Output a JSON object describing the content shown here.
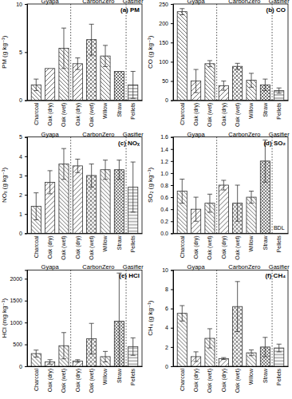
{
  "chart_data": [
    {
      "type": "bar",
      "title": "(a) PM",
      "y_label": "PM (g kg⁻¹)",
      "categories": [
        "Charcoal",
        "Oak (dry)",
        "Oak (wet)",
        "Oak (dry)",
        "Oak (wet)",
        "Willow",
        "Straw",
        "Pellets"
      ],
      "group": [
        "Gyapa",
        "Gyapa",
        "Gyapa",
        "CarbonZero",
        "CarbonZero",
        "CarbonZero",
        "CarbonZero",
        "Gasifier"
      ],
      "values": [
        1.6,
        3.3,
        5.4,
        3.8,
        6.3,
        4.6,
        3.0,
        1.6
      ],
      "errors": [
        0.6,
        null,
        2.1,
        0.6,
        1.6,
        1.1,
        null,
        1.4
      ],
      "ylim": [
        0,
        10
      ],
      "yticks": [
        0,
        5,
        10
      ],
      "color": "#333333"
    },
    {
      "type": "bar",
      "title": "(b) CO",
      "y_label": "CO (g kg⁻¹)",
      "categories": [
        "Charcoal",
        "Oak (dry)",
        "Oak (wet)",
        "Oak (dry)",
        "Oak (wet)",
        "Willow",
        "Straw",
        "Pellets"
      ],
      "group": [
        "Gyapa",
        "Gyapa",
        "Gyapa",
        "CarbonZero",
        "CarbonZero",
        "CarbonZero",
        "CarbonZero",
        "Gasifier"
      ],
      "values": [
        230,
        50,
        95,
        38,
        88,
        52,
        40,
        25
      ],
      "errors": [
        8,
        30,
        8,
        12,
        8,
        18,
        15,
        7
      ],
      "ylim": [
        0,
        250
      ],
      "yticks": [
        0,
        50,
        100,
        150,
        200,
        250
      ],
      "color": "#333333"
    },
    {
      "type": "bar",
      "title": "(c) NOₓ",
      "y_label": "NOₓ (g kg⁻¹)",
      "categories": [
        "Charcoal",
        "Oak (dry)",
        "Oak (wet)",
        "Oak (dry)",
        "Oak (wet)",
        "Willow",
        "Straw",
        "Pellets"
      ],
      "group": [
        "Gyapa",
        "Gyapa",
        "Gyapa",
        "CarbonZero",
        "CarbonZero",
        "CarbonZero",
        "CarbonZero",
        "Gasifier"
      ],
      "values": [
        1.4,
        2.65,
        3.6,
        3.5,
        3.0,
        3.3,
        3.3,
        2.4
      ],
      "errors": [
        0.7,
        0.6,
        0.8,
        0.35,
        0.6,
        0.5,
        0.5,
        1.3
      ],
      "ylim": [
        0,
        5
      ],
      "yticks": [
        0,
        1,
        2,
        3,
        4,
        5
      ],
      "color": "#333333"
    },
    {
      "type": "bar",
      "title": "(d) SO₂",
      "y_label": "SO₂ (g kg⁻¹)",
      "categories": [
        "Charcoal",
        "Oak (dry)",
        "Oak (wet)",
        "Oak (dry)",
        "Oak (wet)",
        "Willow",
        "Straw",
        "Pellets"
      ],
      "group": [
        "Gyapa",
        "Gyapa",
        "Gyapa",
        "CarbonZero",
        "CarbonZero",
        "CarbonZero",
        "CarbonZero",
        "Gasifier"
      ],
      "values": [
        0.7,
        0.4,
        0.5,
        0.8,
        0.5,
        0.6,
        1.2,
        null
      ],
      "errors": [
        0.2,
        0.2,
        0.15,
        0.08,
        0.3,
        0.1,
        0.35,
        null
      ],
      "annotations": [
        {
          "text": "BDL",
          "x": "Pellets"
        }
      ],
      "ylim": [
        0,
        1.6
      ],
      "yticks": [
        {
          "value": 0,
          "label": "0.0"
        },
        {
          "value": 0.2,
          "label": "0.2"
        },
        {
          "value": 0.4,
          "label": "0.4"
        },
        {
          "value": 0.6,
          "label": "0.6"
        },
        {
          "value": 0.8,
          "label": "0.8"
        },
        {
          "value": 1,
          "label": "1.0"
        },
        {
          "value": 1.2,
          "label": "1.2"
        },
        {
          "value": 1.4,
          "label": "1.4"
        },
        {
          "value": 1.6,
          "label": "1.6"
        }
      ],
      "color": "#333333"
    },
    {
      "type": "bar",
      "title": "(e) HCl",
      "y_label": "HCl (mg kg⁻¹)",
      "categories": [
        "Charcoal",
        "Oak (dry)",
        "Oak (wet)",
        "Oak (dry)",
        "Oak (wet)",
        "Willow",
        "Straw",
        "Pellets"
      ],
      "group": [
        "Gyapa",
        "Gyapa",
        "Gyapa",
        "CarbonZero",
        "CarbonZero",
        "CarbonZero",
        "CarbonZero",
        "Gasifier"
      ],
      "values": [
        290,
        100,
        470,
        120,
        630,
        220,
        1030,
        450
      ],
      "errors": [
        80,
        50,
        300,
        30,
        350,
        120,
        1100,
        200
      ],
      "ylim": [
        0,
        2200
      ],
      "yticks": [
        0,
        500,
        1000,
        1500,
        2000
      ],
      "color": "#333333"
    },
    {
      "type": "bar",
      "title": "(f) CH₄",
      "y_label": "CH₄ (g kg⁻¹)",
      "categories": [
        "Charcoal",
        "Oak (dry)",
        "Oak (wet)",
        "Oak (dry)",
        "Oak (wet)",
        "Willow",
        "Straw",
        "Pellets"
      ],
      "group": [
        "Gyapa",
        "Gyapa",
        "Gyapa",
        "CarbonZero",
        "CarbonZero",
        "CarbonZero",
        "CarbonZero",
        "Gasifier"
      ],
      "values": [
        5.5,
        1.0,
        2.9,
        0.8,
        6.2,
        1.4,
        2.0,
        1.9
      ],
      "errors": [
        0.8,
        0.5,
        1.0,
        0.1,
        2.6,
        0.3,
        1.0,
        0.4
      ],
      "ylim": [
        0,
        10
      ],
      "yticks": [
        0,
        2,
        4,
        6,
        8,
        10
      ],
      "color": "#333333"
    }
  ]
}
